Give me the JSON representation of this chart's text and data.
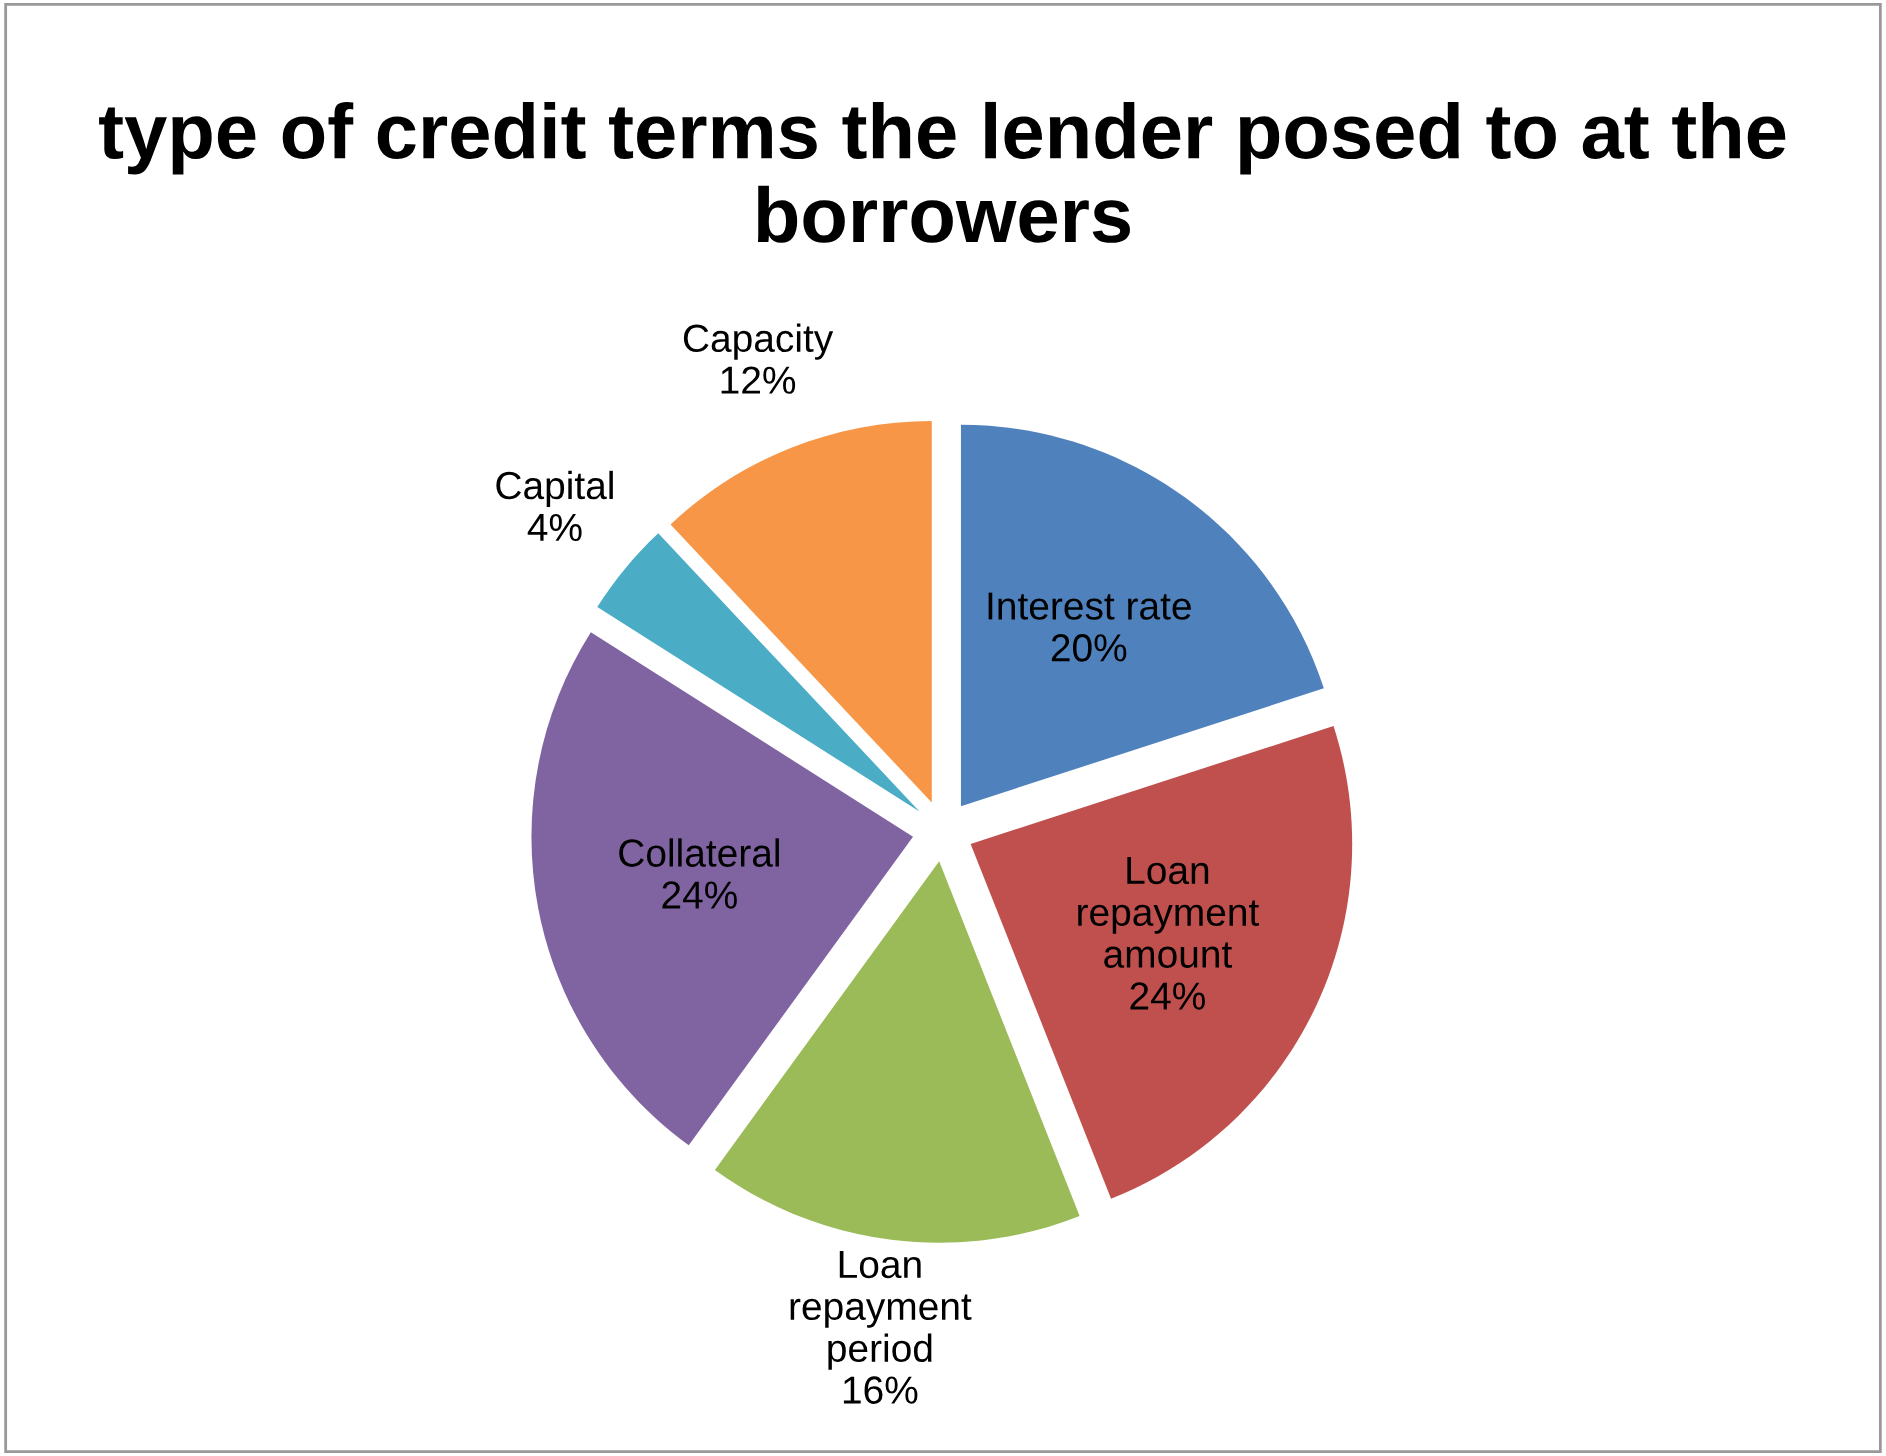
{
  "chart_data": {
    "type": "pie",
    "title": "type of credit terms the lender posed to at the borrowers",
    "categories": [
      "Interest rate",
      "Loan repayment amount",
      "Loan repayment period",
      "Collateral",
      "Capital",
      "Capacity"
    ],
    "values": [
      20,
      24,
      16,
      24,
      4,
      12
    ],
    "colors": [
      "#4f81bd",
      "#c0504d",
      "#9bbb59",
      "#8064a2",
      "#4bacc6",
      "#f79646"
    ],
    "value_labels": [
      "20%",
      "24%",
      "16%",
      "24%",
      "4%",
      "12%"
    ],
    "legend": false
  }
}
